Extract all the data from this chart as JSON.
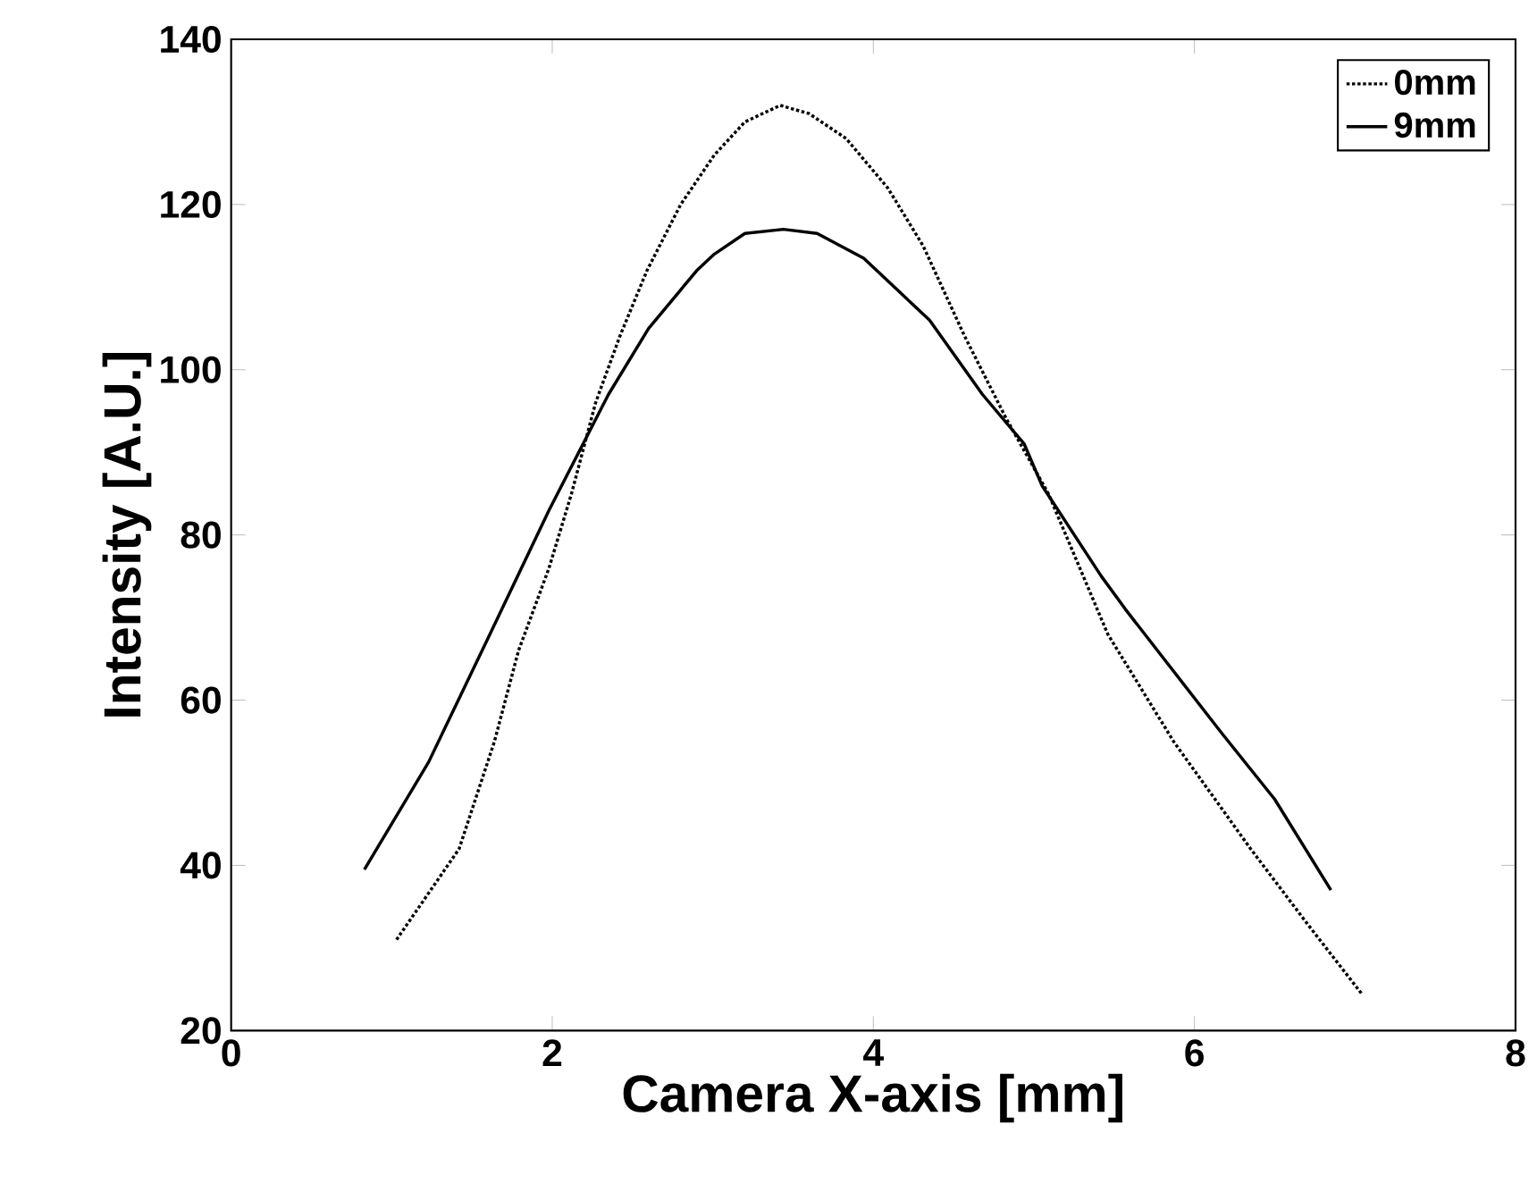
{
  "chart_data": {
    "type": "line",
    "xlabel": "Camera X-axis [mm]",
    "ylabel": "Intensity [A.U.]",
    "xlim": [
      0,
      8
    ],
    "ylim": [
      20,
      140
    ],
    "xticks": [
      0,
      2,
      4,
      6,
      8
    ],
    "yticks": [
      20,
      40,
      60,
      80,
      100,
      120,
      140
    ],
    "grid": false,
    "legend": "top right",
    "marker": "none",
    "series": [
      {
        "name": "0mm",
        "color": "#000000",
        "line_style": "dotted",
        "x": [
          1.03,
          1.42,
          1.64,
          1.79,
          1.98,
          2.12,
          2.27,
          2.42,
          2.59,
          2.8,
          3.01,
          3.2,
          3.42,
          3.6,
          3.83,
          4.09,
          4.31,
          4.57,
          4.83,
          5.09,
          5.46,
          5.87,
          6.35,
          6.7,
          7.04
        ],
        "values": [
          31,
          42,
          55,
          66,
          76,
          85,
          96,
          104,
          112,
          120,
          126,
          130,
          132,
          131,
          128,
          122,
          115,
          104,
          94,
          85,
          68,
          55,
          42,
          33,
          24.5
        ]
      },
      {
        "name": "9mm",
        "color": "#000000",
        "line_style": "solid",
        "x": [
          0.83,
          1.23,
          1.6,
          1.98,
          2.35,
          2.6,
          2.9,
          3.01,
          3.2,
          3.44,
          3.65,
          3.94,
          4.35,
          4.68,
          4.94,
          5.05,
          5.42,
          5.57,
          6.17,
          6.5,
          6.85
        ],
        "values": [
          39.5,
          52.5,
          67.5,
          83,
          97,
          105,
          112,
          114,
          116.5,
          117,
          116.5,
          113.5,
          106,
          97,
          91,
          86,
          75,
          71,
          56,
          48,
          37
        ]
      }
    ]
  }
}
